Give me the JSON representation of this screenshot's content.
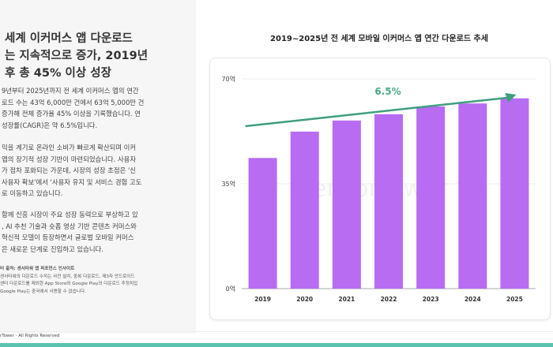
{
  "left": {
    "headline": [
      "세계 이커머스 앱 다운로드",
      "는 지속적으로 증가, 2019년",
      "후 총 45% 이상 성장"
    ],
    "para1": [
      "9년부터 2025년까지 전 세계 이커머스 앱의 연간",
      "로드 수는 43억 6,000만 건에서 63억 5,000만 건",
      " 증가해 전체 증가율 45% 이상을 기록했습니다. 연",
      " 성장률(CAGR)은 약 6.5%입니다."
    ],
    "para2": [
      "믹을 계기로 온라인 소비가 빠르게 확산되며 이커",
      " 앱의 장기적 성장 기반이 마련되었습니다. 사용자",
      "가 점차 포화되는 가운데, 시장의 성장 초점은 '신",
      "사용자 확보'에서 '사용자 유지 및 서비스 경험 고도",
      "로 이동하고 있습니다."
    ],
    "para3": [
      " 함께 신흥 시장이 주요 성장 동력으로 부상하고 있",
      ", AI 추천 기술과 숏폼 영상 기반 콘텐츠 커머스와",
      " 혁신적 모델이 등장하면서 글로벌 모바일 커머스",
      " 은 새로운 단계로 진입하고 있습니다."
    ],
    "source": [
      "터 출처: 센서타워 앱 퍼포먼스 인사이트",
      "센서타워의 다운로드 수치는 사전 설치, 중복 다운로드, 제3자 안드로이드",
      "센터 다운로드를 제외한 App Store와 Google Play의 다운로드 추정치입",
      "Google Play는 중국에서 사용할 수 없습니다."
    ],
    "footer": "rTower - All Rights Reserved"
  },
  "chart_data": {
    "type": "bar",
    "title": "2019~2025년 전 세계 모바일 이커머스 앱 연간 다운로드 추세",
    "categories": [
      "2019",
      "2020",
      "2021",
      "2022",
      "2023",
      "2024",
      "2025"
    ],
    "values": [
      43.6,
      52.4,
      56.1,
      58.2,
      60.8,
      61.8,
      63.5
    ],
    "unit": "억",
    "ylim": [
      0,
      70
    ],
    "yticks": [
      "0억",
      "35억",
      "70억"
    ],
    "ytick_values": [
      0,
      35,
      70
    ],
    "annotation": "6.5%",
    "grid": true,
    "colors": {
      "bar": "#b76cf2",
      "arrow": "#3f9e7f",
      "annotation": "#4aa888"
    }
  },
  "watermark": "SensorTower"
}
